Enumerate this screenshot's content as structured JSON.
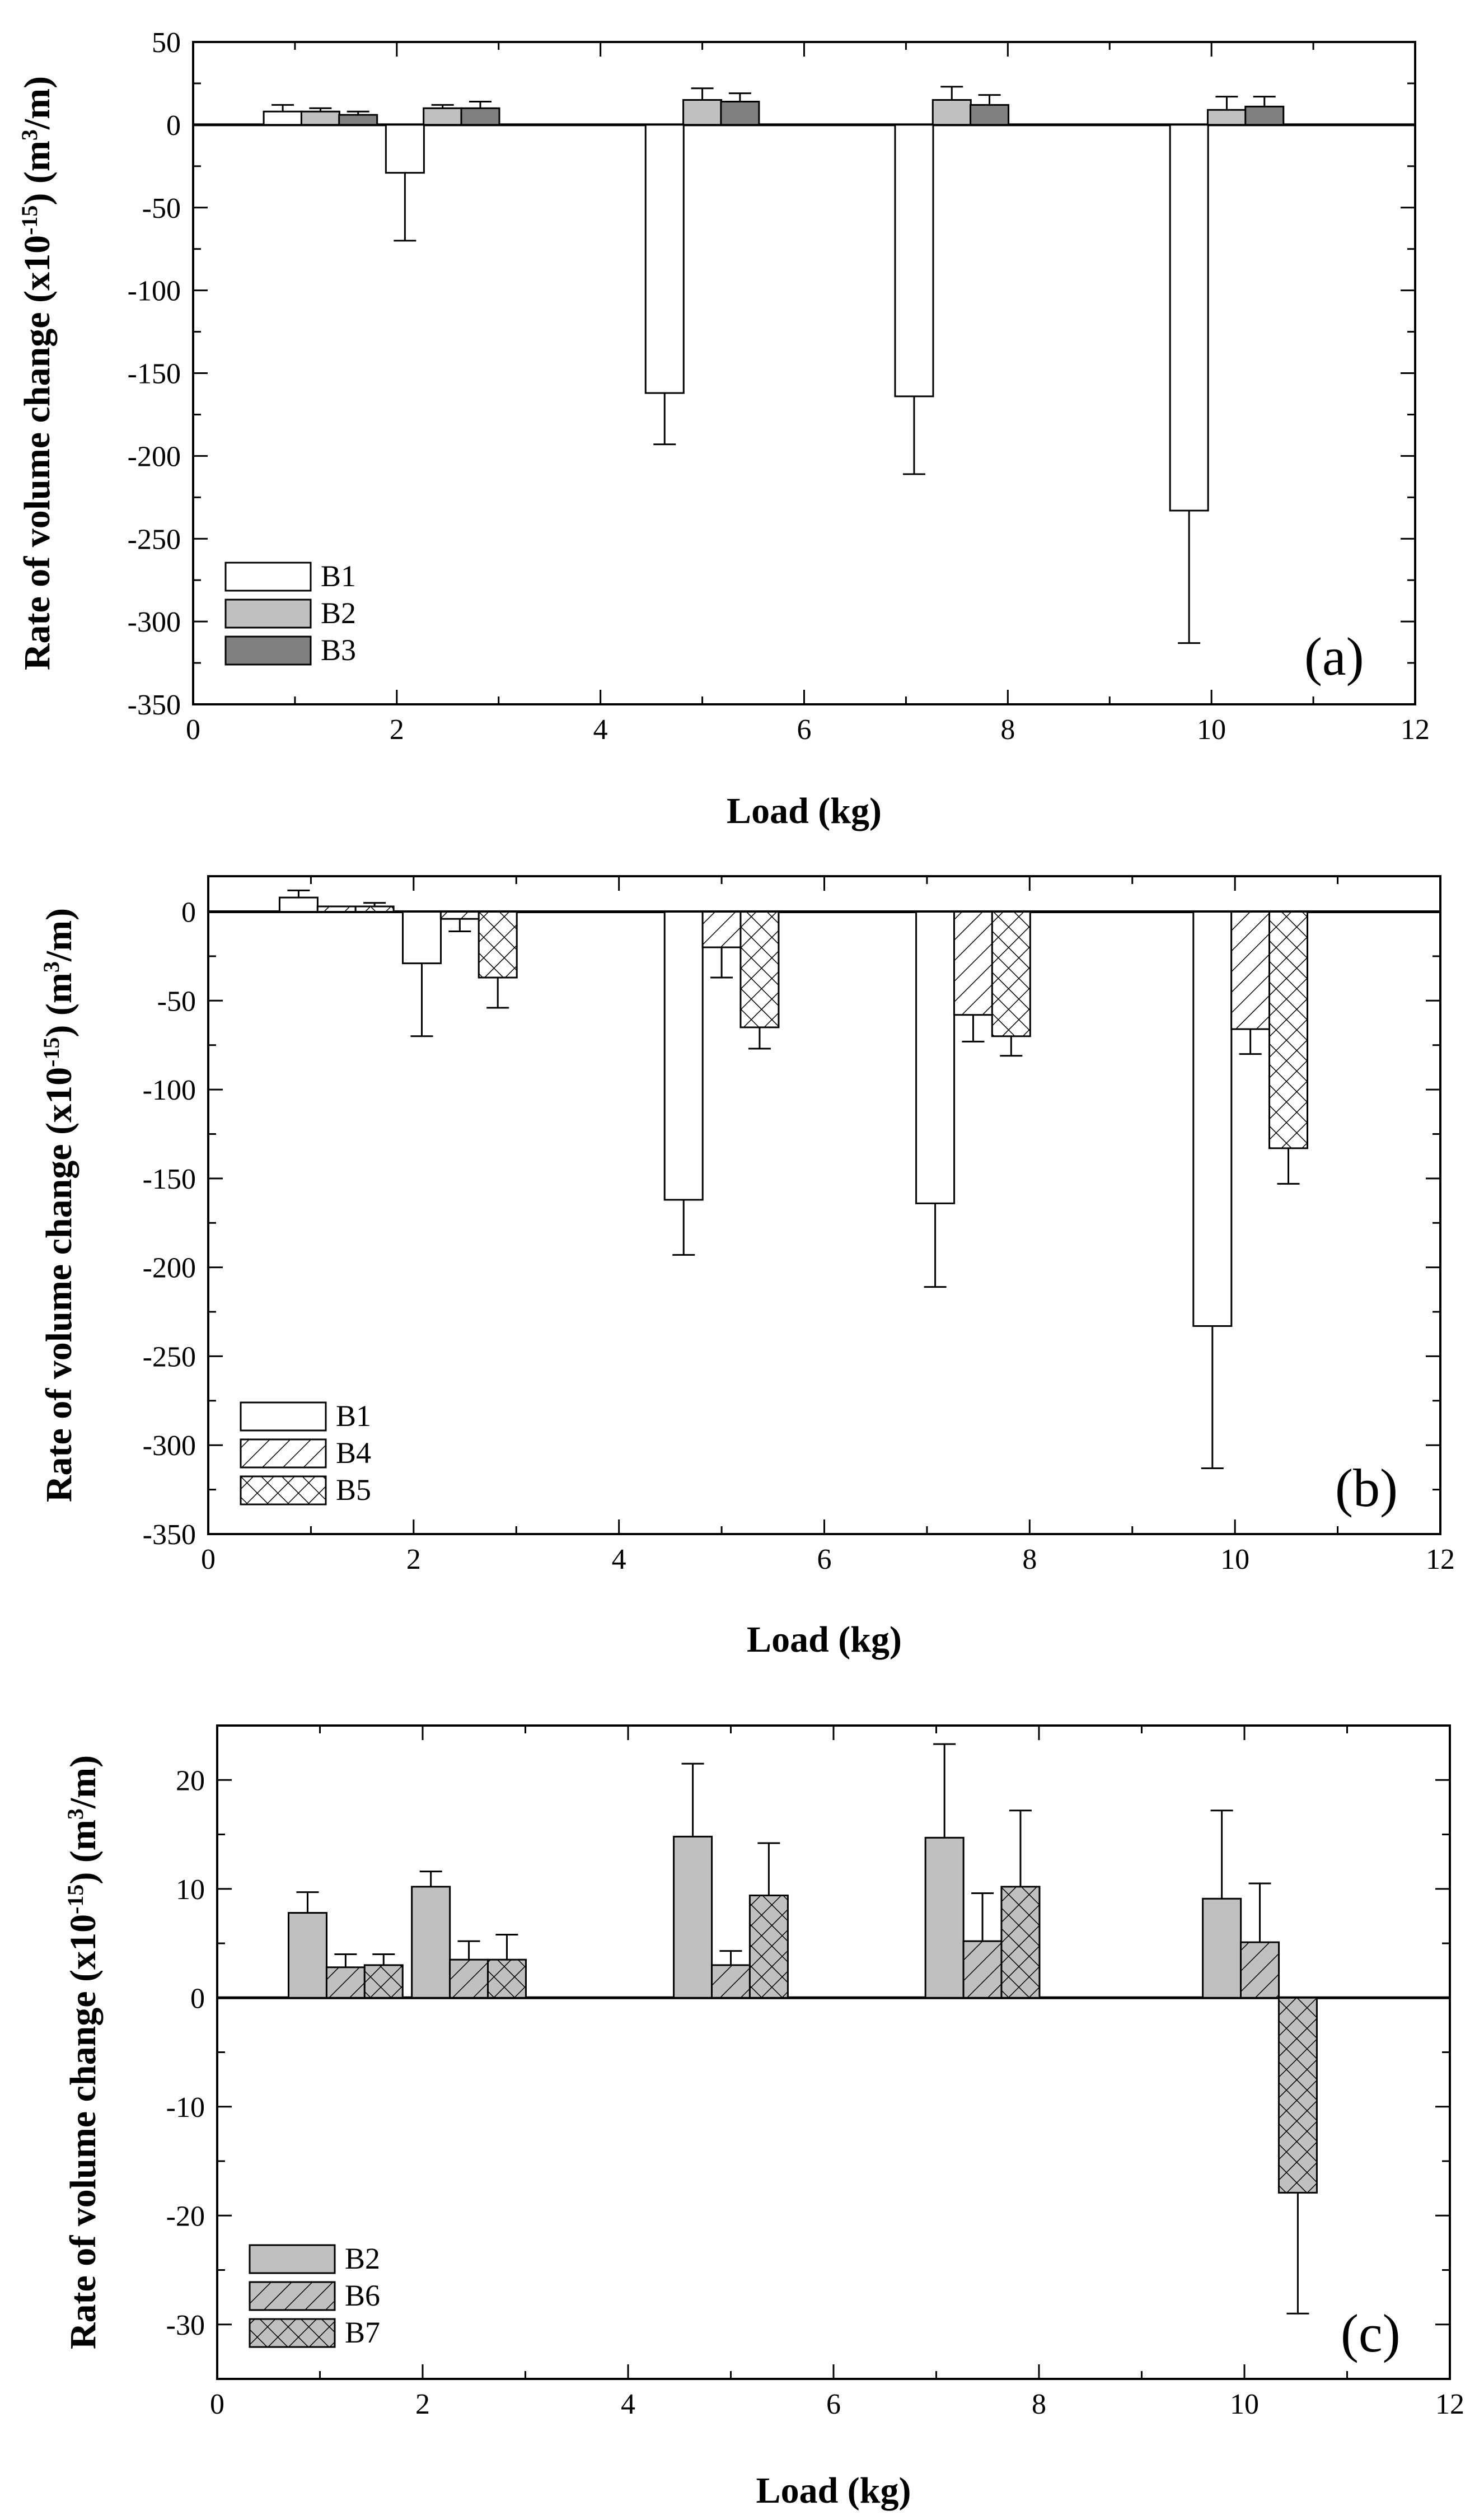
{
  "pattern_colors": {
    "B1": "#ffffff",
    "B2": "#c0c0c0",
    "B3": "#808080",
    "B4": "#ffffff",
    "B5": "#ffffff",
    "B6": "#c0c0c0",
    "B7": "#c0c0c0"
  },
  "chart_data": [
    {
      "type": "bar",
      "panel_label": "(a)",
      "xlabel": "Load (kg)",
      "ylabel": "Rate of volume change (x10^-15) (m^3/m)",
      "xlim": [
        0,
        12
      ],
      "ylim": [
        -350,
        50
      ],
      "xticks": [
        0,
        2,
        4,
        6,
        8,
        10,
        12
      ],
      "yticks": [
        50,
        0,
        -50,
        -100,
        -150,
        -200,
        -250,
        -300,
        -350
      ],
      "legend_position": "bottom-left",
      "series": [
        {
          "name": "B1",
          "x": [
            0.88,
            2.08,
            4.63,
            7.08,
            9.78
          ],
          "values": [
            8,
            -29,
            -162,
            -164,
            -233
          ],
          "errors": [
            4,
            41,
            31,
            47,
            80
          ]
        },
        {
          "name": "B2",
          "x": [
            1.25,
            2.45,
            5.0,
            7.45,
            10.15
          ],
          "values": [
            8,
            10,
            15,
            15,
            9
          ],
          "errors": [
            2,
            2,
            7,
            8,
            8
          ]
        },
        {
          "name": "B3",
          "x": [
            1.62,
            2.82,
            5.37,
            7.82,
            10.52
          ],
          "values": [
            6,
            10,
            14,
            12,
            11
          ],
          "errors": [
            2,
            4,
            5,
            6,
            6
          ]
        }
      ]
    },
    {
      "type": "bar",
      "panel_label": "(b)",
      "xlabel": "Load (kg)",
      "ylabel": "Rate of volume change (x10^-15) (m^3/m)",
      "xlim": [
        0,
        12
      ],
      "ylim": [
        -350,
        20
      ],
      "xticks": [
        0,
        2,
        4,
        6,
        8,
        10,
        12
      ],
      "yticks": [
        0,
        -50,
        -100,
        -150,
        -200,
        -250,
        -300,
        -350
      ],
      "legend_position": "bottom-left",
      "series": [
        {
          "name": "B1",
          "x": [
            0.88,
            2.08,
            4.63,
            7.08,
            9.78
          ],
          "values": [
            8,
            -29,
            -162,
            -164,
            -233
          ],
          "errors": [
            4,
            41,
            31,
            47,
            80
          ]
        },
        {
          "name": "B4",
          "x": [
            1.25,
            2.45,
            5.0,
            7.45,
            10.15
          ],
          "values": [
            3,
            -4,
            -20,
            -58,
            -66
          ],
          "errors": [
            0,
            7,
            17,
            15,
            14
          ]
        },
        {
          "name": "B5",
          "x": [
            1.62,
            2.82,
            5.37,
            7.82,
            10.52
          ],
          "values": [
            3,
            -37,
            -65,
            -70,
            -133
          ],
          "errors": [
            2,
            17,
            12,
            11,
            20
          ]
        }
      ]
    },
    {
      "type": "bar",
      "panel_label": "(c)",
      "xlabel": "Load (kg)",
      "ylabel": "Rate of volume change (x10^-15) (m^3/m)",
      "xlim": [
        0,
        12
      ],
      "ylim": [
        -35,
        25
      ],
      "xticks": [
        0,
        2,
        4,
        6,
        8,
        10,
        12
      ],
      "yticks": [
        20,
        10,
        0,
        -10,
        -20,
        -30
      ],
      "legend_position": "bottom-left",
      "series": [
        {
          "name": "B2",
          "x": [
            0.88,
            2.08,
            4.63,
            7.08,
            9.78
          ],
          "values": [
            7.8,
            10.2,
            14.8,
            14.7,
            9.1
          ],
          "errors": [
            1.9,
            1.4,
            6.7,
            8.6,
            8.1
          ]
        },
        {
          "name": "B6",
          "x": [
            1.25,
            2.45,
            5.0,
            7.45,
            10.15
          ],
          "values": [
            2.8,
            3.5,
            3.0,
            5.2,
            5.1
          ],
          "errors": [
            1.2,
            1.7,
            1.3,
            4.4,
            5.4
          ]
        },
        {
          "name": "B7",
          "x": [
            1.62,
            2.82,
            5.37,
            7.82,
            10.52
          ],
          "values": [
            3.0,
            3.5,
            9.4,
            10.2,
            -17.9
          ],
          "errors": [
            1.0,
            2.3,
            4.8,
            7.0,
            11.1
          ]
        }
      ]
    }
  ]
}
